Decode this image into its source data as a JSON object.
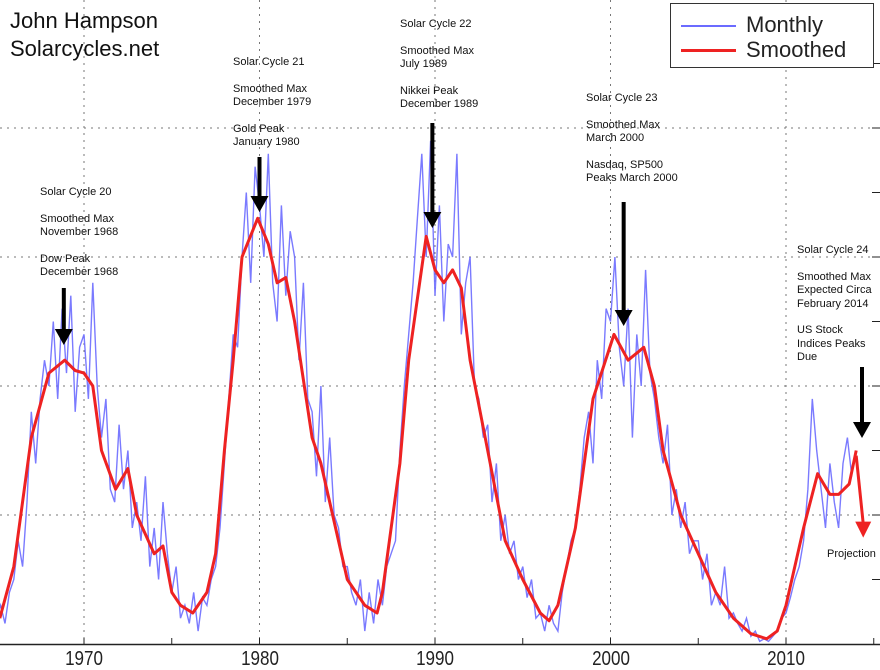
{
  "credit": {
    "line1": "John Hampson",
    "line2": "Solarcycles.net"
  },
  "legend": {
    "monthly": "Monthly",
    "smoothed": "Smoothed"
  },
  "colors": {
    "monthly": "#6b6bff",
    "smoothed": "#ee2222",
    "arrow": "#000000",
    "projection": "#ee2222"
  },
  "annotations": [
    {
      "lines": [
        "Solar Cycle 20",
        "",
        "Smoothed Max",
        "November 1968",
        "",
        "Dow Peak",
        "December 1968"
      ],
      "arrow_year": 1968.85
    },
    {
      "lines": [
        "Solar Cycle 21",
        "",
        "Smoothed Max",
        "December 1979",
        "",
        "Gold Peak",
        "January 1980"
      ],
      "arrow_year": 1980.0
    },
    {
      "lines": [
        "Solar Cycle 22",
        "",
        "Smoothed Max",
        "July 1989",
        "",
        "Nikkei Peak",
        "December 1989"
      ],
      "arrow_year": 1989.85
    },
    {
      "lines": [
        "Solar Cycle 23",
        "",
        "Smoothed Max",
        "March 2000",
        "",
        "Nasdaq, SP500",
        "Peaks March 2000"
      ],
      "arrow_year": 2000.75
    },
    {
      "lines": [
        "Solar Cycle 24",
        "",
        "Smoothed Max",
        "Expected Circa",
        "February 2014",
        "",
        "US Stock",
        "Indices Peaks",
        "Due"
      ],
      "arrow_year": 2014.3
    }
  ],
  "projection_label": "Projection",
  "chart_data": {
    "type": "line",
    "title": "",
    "xlabel": "",
    "ylabel": "",
    "xlim": [
      1965.2,
      2015.35
    ],
    "ylim": [
      0,
      250
    ],
    "x_ticks": [
      "1970",
      "1980",
      "1990",
      "2000",
      "2010"
    ],
    "grid": true,
    "legend": "top-right",
    "series": [
      {
        "name": "Monthly",
        "x_start": 1965.0,
        "x_step": 0.25,
        "values": [
          10,
          15,
          8,
          20,
          25,
          40,
          30,
          55,
          90,
          70,
          95,
          110,
          100,
          125,
          95,
          130,
          105,
          135,
          90,
          115,
          120,
          95,
          140,
          100,
          80,
          95,
          60,
          55,
          85,
          60,
          75,
          45,
          55,
          40,
          65,
          30,
          45,
          25,
          55,
          35,
          20,
          30,
          10,
          15,
          8,
          20,
          5,
          18,
          15,
          25,
          30,
          45,
          70,
          95,
          120,
          115,
          150,
          175,
          140,
          185,
          170,
          150,
          190,
          140,
          125,
          170,
          135,
          160,
          150,
          110,
          140,
          95,
          90,
          65,
          100,
          55,
          80,
          50,
          45,
          30,
          30,
          20,
          15,
          25,
          5,
          20,
          8,
          25,
          15,
          30,
          35,
          40,
          75,
          100,
          120,
          140,
          165,
          190,
          150,
          195,
          135,
          170,
          125,
          155,
          150,
          190,
          120,
          140,
          150,
          100,
          95,
          80,
          85,
          55,
          70,
          40,
          50,
          35,
          40,
          25,
          30,
          18,
          25,
          10,
          12,
          5,
          15,
          8,
          5,
          20,
          30,
          40,
          45,
          60,
          80,
          90,
          70,
          110,
          95,
          130,
          125,
          150,
          115,
          100,
          130,
          80,
          120,
          100,
          145,
          105,
          95,
          80,
          70,
          85,
          50,
          60,
          45,
          55,
          35,
          40,
          40,
          25,
          35,
          15,
          20,
          15,
          30,
          10,
          12,
          8,
          5,
          10,
          3,
          5,
          1,
          2,
          1,
          3,
          5,
          10,
          12,
          18,
          25,
          30,
          40,
          60,
          95,
          75,
          60,
          45,
          70,
          55,
          45,
          70,
          80,
          65
        ]
      },
      {
        "name": "Smoothed",
        "points": [
          [
            1965.2,
            10
          ],
          [
            1966,
            30
          ],
          [
            1967,
            80
          ],
          [
            1968,
            105
          ],
          [
            1968.9,
            110
          ],
          [
            1969.5,
            106
          ],
          [
            1970,
            105
          ],
          [
            1970.5,
            100
          ],
          [
            1971,
            75
          ],
          [
            1971.8,
            60
          ],
          [
            1972.5,
            68
          ],
          [
            1973,
            50
          ],
          [
            1974,
            35
          ],
          [
            1974.5,
            38
          ],
          [
            1975,
            20
          ],
          [
            1975.5,
            15
          ],
          [
            1976.2,
            12
          ],
          [
            1977,
            20
          ],
          [
            1977.5,
            35
          ],
          [
            1978,
            75
          ],
          [
            1978.5,
            110
          ],
          [
            1979,
            150
          ],
          [
            1979.9,
            165
          ],
          [
            1980.5,
            155
          ],
          [
            1981,
            140
          ],
          [
            1981.5,
            142
          ],
          [
            1982,
            125
          ],
          [
            1983,
            80
          ],
          [
            1983.5,
            70
          ],
          [
            1984,
            55
          ],
          [
            1985,
            25
          ],
          [
            1986,
            15
          ],
          [
            1986.7,
            12
          ],
          [
            1987,
            20
          ],
          [
            1988,
            70
          ],
          [
            1988.5,
            110
          ],
          [
            1989.5,
            158
          ],
          [
            1990,
            145
          ],
          [
            1990.5,
            140
          ],
          [
            1991,
            145
          ],
          [
            1991.5,
            138
          ],
          [
            1992,
            110
          ],
          [
            1993,
            75
          ],
          [
            1994,
            40
          ],
          [
            1995,
            25
          ],
          [
            1996,
            12
          ],
          [
            1996.5,
            9
          ],
          [
            1997,
            15
          ],
          [
            1998,
            45
          ],
          [
            1999,
            95
          ],
          [
            2000.2,
            120
          ],
          [
            2001,
            110
          ],
          [
            2001.9,
            115
          ],
          [
            2002.5,
            100
          ],
          [
            2003,
            75
          ],
          [
            2004,
            50
          ],
          [
            2005,
            35
          ],
          [
            2006,
            20
          ],
          [
            2007,
            10
          ],
          [
            2008,
            4
          ],
          [
            2008.9,
            2
          ],
          [
            2009.5,
            5
          ],
          [
            2010,
            15
          ],
          [
            2011,
            45
          ],
          [
            2011.8,
            66
          ],
          [
            2012.5,
            58
          ],
          [
            2013,
            58
          ],
          [
            2013.6,
            62
          ],
          [
            2014,
            75
          ]
        ]
      },
      {
        "projection": [
          [
            2014.0,
            73
          ],
          [
            2014.4,
            42
          ]
        ]
      }
    ]
  }
}
